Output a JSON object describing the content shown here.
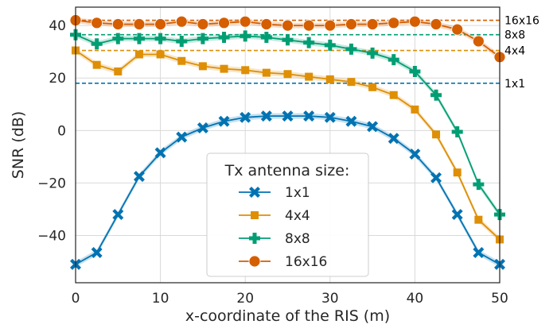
{
  "chart_data": {
    "type": "line",
    "xlabel": "x-coordinate of the RIS (m)",
    "ylabel": "SNR (dB)",
    "xlim": [
      0,
      50
    ],
    "ylim": [
      -58,
      47
    ],
    "xticks": [
      0,
      10,
      20,
      30,
      40,
      50
    ],
    "yticks": [
      -40,
      -20,
      0,
      20,
      40
    ],
    "ytick_labels": [
      "−40",
      "−20",
      "0",
      "20",
      "40"
    ],
    "grid": true,
    "legend": {
      "title": "Tx antenna size:",
      "placement": "lower-center"
    },
    "x": [
      0,
      2.5,
      5,
      7.5,
      10,
      12.5,
      15,
      17.5,
      20,
      22.5,
      25,
      27.5,
      30,
      32.5,
      35,
      37.5,
      40,
      42.5,
      45,
      47.5,
      50
    ],
    "series": [
      {
        "name": "1x1",
        "color": "#0173b2",
        "marker": "x",
        "values": [
          -51,
          -46.5,
          -32,
          -17.5,
          -8.5,
          -2.5,
          1,
          3.5,
          5,
          5.5,
          5.5,
          5.5,
          5,
          3.5,
          1.5,
          -3,
          -9,
          -18,
          -32,
          -46.5,
          -51
        ]
      },
      {
        "name": "4x4",
        "color": "#de8f05",
        "marker": "square",
        "values": [
          30.5,
          25,
          22.5,
          29,
          29,
          26.5,
          24.5,
          23.5,
          23,
          22,
          21.5,
          20.5,
          19.5,
          18.5,
          16.5,
          13.5,
          8,
          -1.5,
          -16,
          -34,
          -41.5
        ]
      },
      {
        "name": "8x8",
        "color": "#029e73",
        "marker": "plus",
        "values": [
          36.5,
          33,
          35,
          35,
          35,
          34,
          35,
          35.5,
          36,
          35.5,
          34.5,
          33.5,
          32.5,
          31,
          29.5,
          27,
          22.5,
          13.5,
          -0.5,
          -20.5,
          -32
        ]
      },
      {
        "name": "16x16",
        "color": "#d55e00",
        "marker": "circle",
        "values": [
          42,
          41,
          40.5,
          40.5,
          40.5,
          41.5,
          40.5,
          41,
          41.5,
          40.5,
          40,
          40,
          40,
          40.5,
          40.5,
          41,
          41.5,
          40.5,
          38.5,
          34,
          28
        ]
      }
    ],
    "reference_lines": [
      {
        "label": "16x16",
        "y": 42,
        "color": "#d55e00"
      },
      {
        "label": "8x8",
        "y": 36.5,
        "color": "#029e73"
      },
      {
        "label": "4x4",
        "y": 30.5,
        "color": "#de8f05"
      },
      {
        "label": "1x1",
        "y": 18,
        "color": "#0173b2"
      }
    ]
  }
}
